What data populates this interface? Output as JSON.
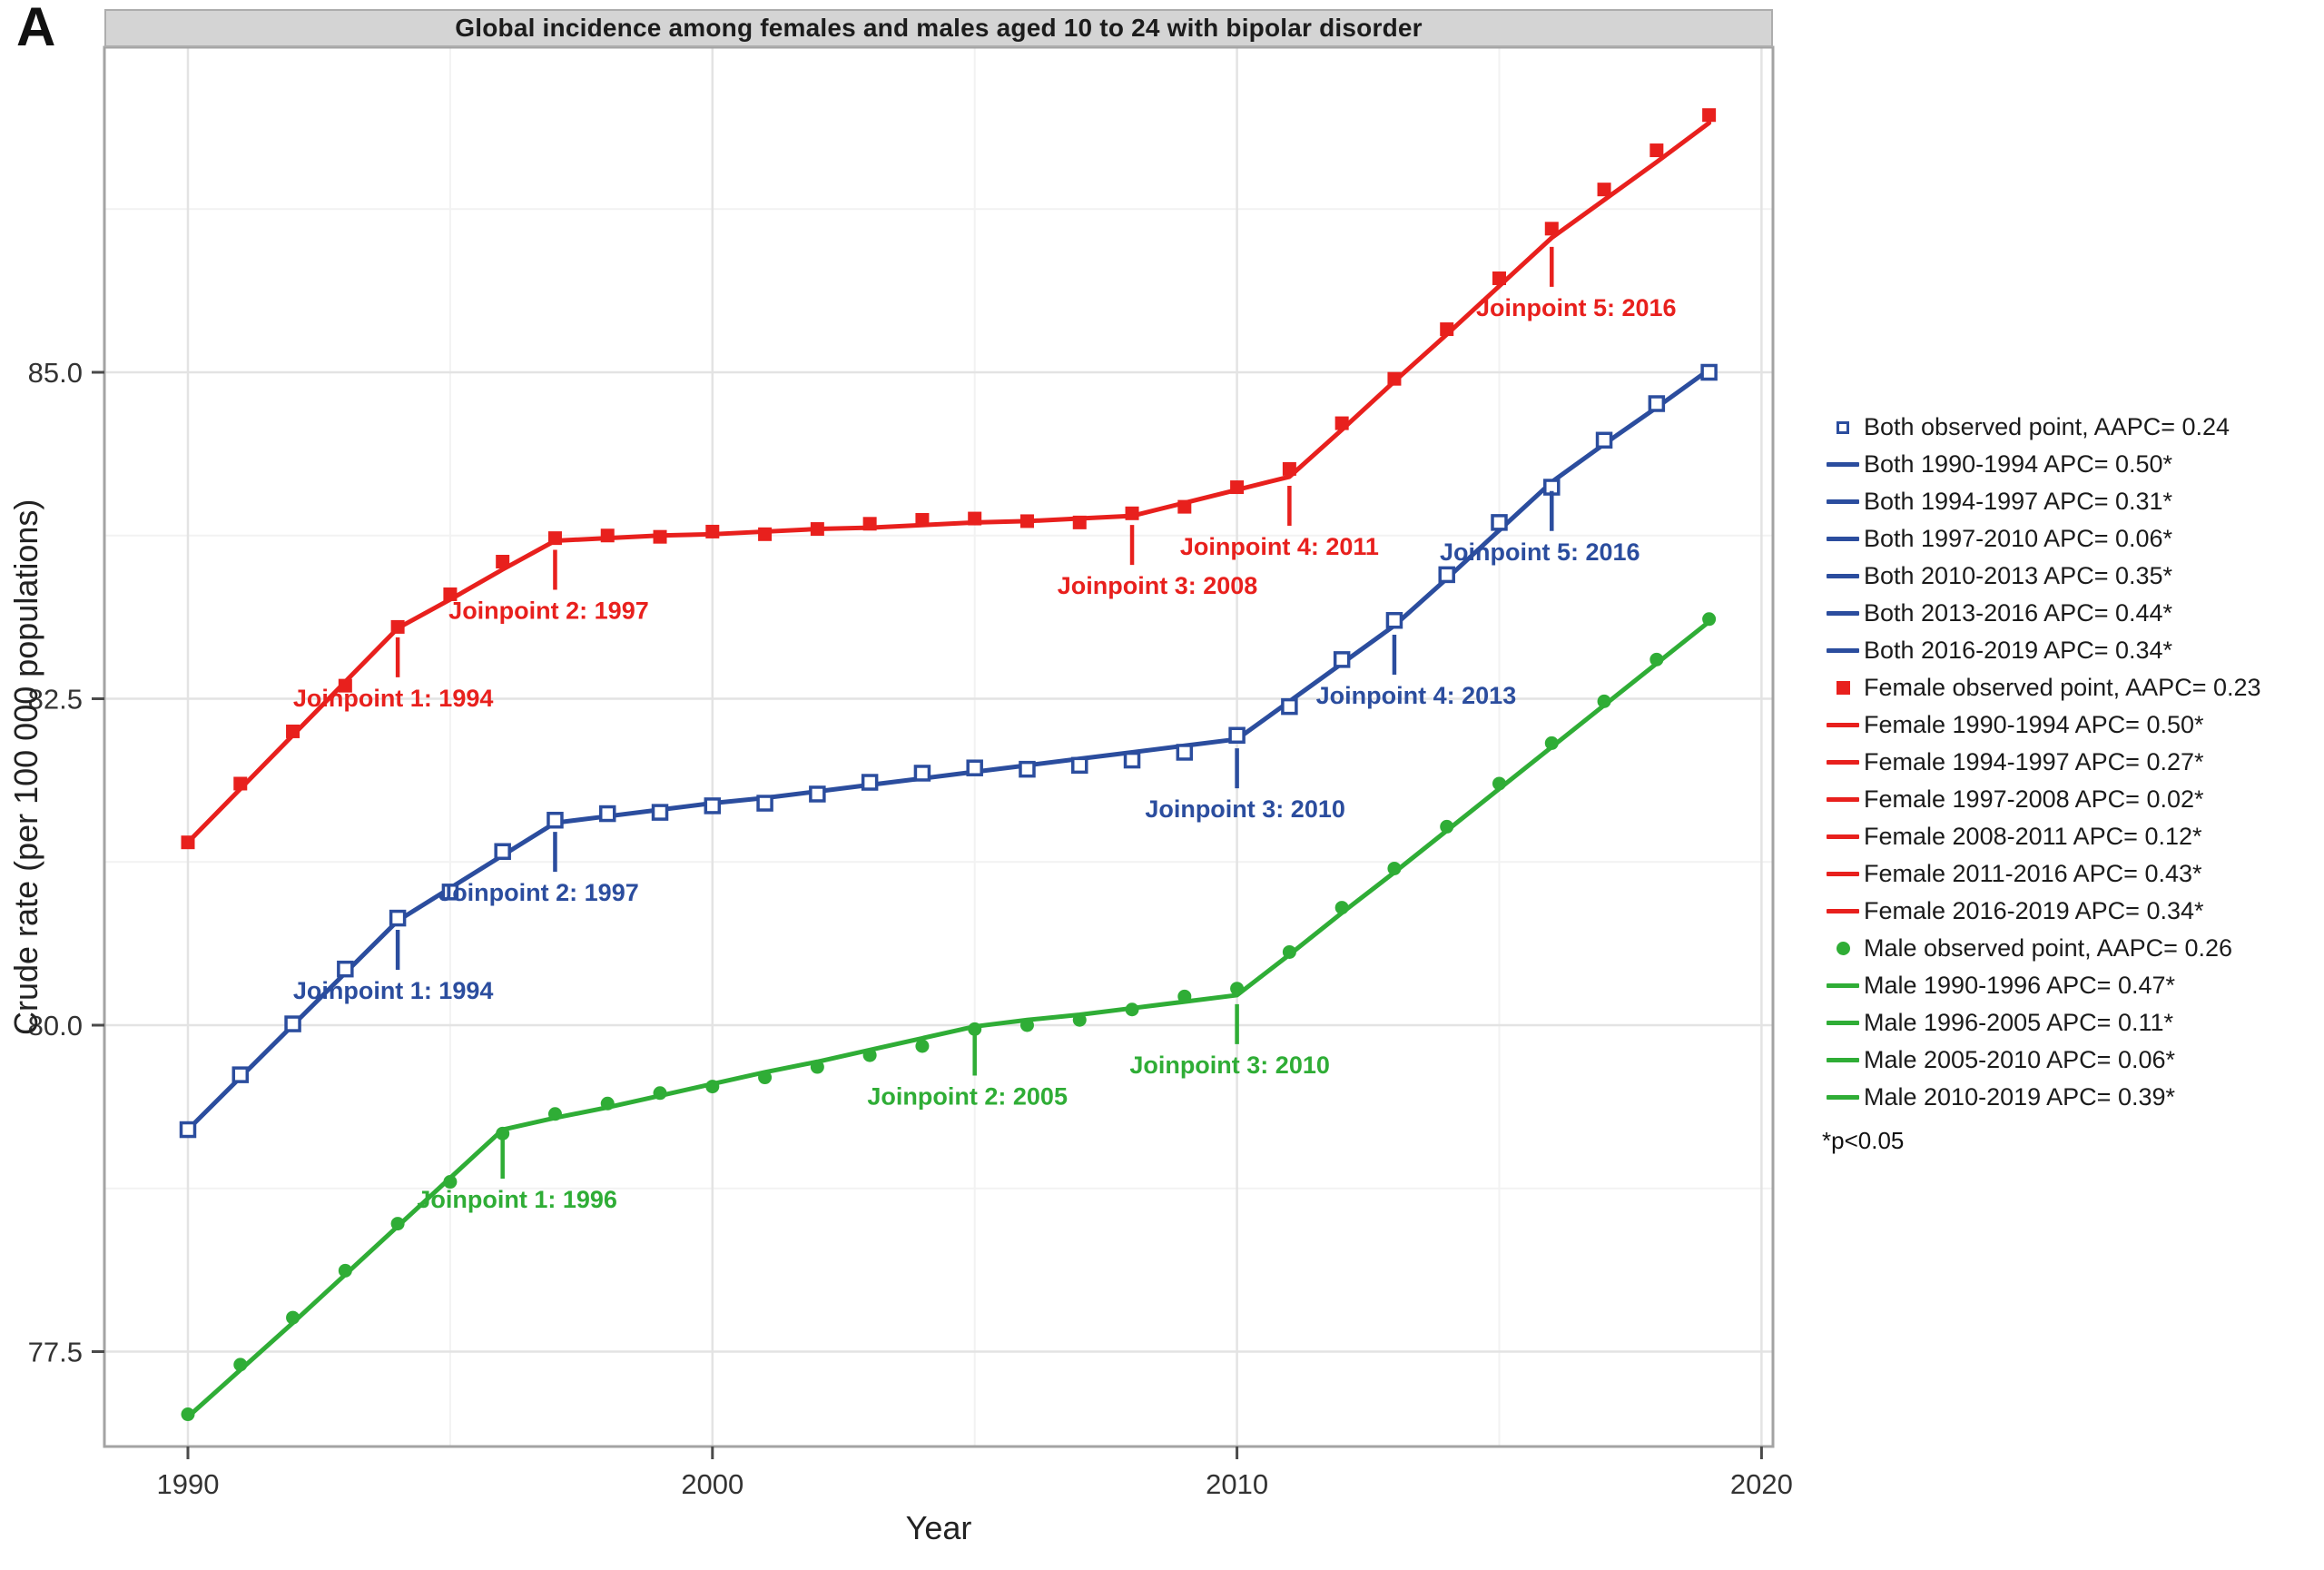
{
  "panel_label": "A",
  "title": "Global incidence among females and males aged 10 to 24 with bipolar disorder",
  "footnote": "*p<0.05",
  "colors": {
    "both": "#2b4d9e",
    "female": "#e8201d",
    "male": "#2fad36"
  },
  "axes": {
    "x_label": "Year",
    "y_label": "Crude rate (per 100 000 populations)",
    "x_tick_labels": [
      "1990",
      "2000",
      "2010",
      "2020"
    ],
    "y_tick_labels": [
      "77.5",
      "80.0",
      "82.5",
      "85.0"
    ]
  },
  "legend": [
    {
      "series": "both",
      "key": "square-open",
      "label": "Both  observed point, AAPC= 0.24"
    },
    {
      "series": "both",
      "key": "line",
      "label": "Both 1990-1994 APC= 0.50*"
    },
    {
      "series": "both",
      "key": "line",
      "label": "Both 1994-1997 APC= 0.31*"
    },
    {
      "series": "both",
      "key": "line",
      "label": "Both 1997-2010 APC= 0.06*"
    },
    {
      "series": "both",
      "key": "line",
      "label": "Both 2010-2013 APC= 0.35*"
    },
    {
      "series": "both",
      "key": "line",
      "label": "Both 2013-2016 APC= 0.44*"
    },
    {
      "series": "both",
      "key": "line",
      "label": "Both 2016-2019 APC= 0.34*"
    },
    {
      "series": "female",
      "key": "square-filled",
      "label": "Female  observed point, AAPC= 0.23"
    },
    {
      "series": "female",
      "key": "line",
      "label": "Female 1990-1994 APC= 0.50*"
    },
    {
      "series": "female",
      "key": "line",
      "label": "Female 1994-1997 APC= 0.27*"
    },
    {
      "series": "female",
      "key": "line",
      "label": "Female 1997-2008 APC= 0.02*"
    },
    {
      "series": "female",
      "key": "line",
      "label": "Female 2008-2011 APC= 0.12*"
    },
    {
      "series": "female",
      "key": "line",
      "label": "Female 2011-2016 APC= 0.43*"
    },
    {
      "series": "female",
      "key": "line",
      "label": "Female 2016-2019 APC= 0.34*"
    },
    {
      "series": "male",
      "key": "circle-filled",
      "label": "Male  observed point, AAPC= 0.26"
    },
    {
      "series": "male",
      "key": "line",
      "label": "Male 1990-1996 APC= 0.47*"
    },
    {
      "series": "male",
      "key": "line",
      "label": "Male 1996-2005 APC= 0.11*"
    },
    {
      "series": "male",
      "key": "line",
      "label": "Male 2005-2010 APC= 0.06*"
    },
    {
      "series": "male",
      "key": "line",
      "label": "Male 2010-2019 APC= 0.39*"
    }
  ],
  "chart_data": {
    "type": "line",
    "title": "Global incidence among females and males aged 10 to 24 with bipolar disorder",
    "xlabel": "Year",
    "ylabel": "Crude rate (per 100 000 populations)",
    "xlim": [
      1988.4,
      2020.2
    ],
    "ylim": [
      76.8,
      87.5
    ],
    "grid": true,
    "legend_position": "right",
    "x_major_gridlines": [
      1990,
      2000,
      2010,
      2020
    ],
    "x_minor_gridlines": [
      1995,
      2005,
      2015
    ],
    "y_major_gridlines": [
      77.5,
      80.0,
      82.5,
      85.0
    ],
    "y_minor_gridlines": [
      78.75,
      81.25,
      83.75,
      86.25
    ],
    "x": [
      1990,
      1991,
      1992,
      1993,
      1994,
      1995,
      1996,
      1997,
      1998,
      1999,
      2000,
      2001,
      2002,
      2003,
      2004,
      2005,
      2006,
      2007,
      2008,
      2009,
      2010,
      2011,
      2012,
      2013,
      2014,
      2015,
      2016,
      2017,
      2018,
      2019
    ],
    "series": [
      {
        "name": "Female",
        "color_key": "female",
        "marker": "square-filled",
        "aapc": 0.23,
        "fitted": [
          81.4,
          81.81,
          82.22,
          82.63,
          83.04,
          83.26,
          83.49,
          83.71,
          83.73,
          83.75,
          83.76,
          83.78,
          83.8,
          83.81,
          83.83,
          83.85,
          83.86,
          83.88,
          83.9,
          84.0,
          84.1,
          84.2,
          84.56,
          84.93,
          85.29,
          85.66,
          86.03,
          86.32,
          86.61,
          86.91
        ],
        "observed": [
          81.4,
          81.85,
          82.25,
          82.6,
          83.05,
          83.3,
          83.55,
          83.73,
          83.75,
          83.74,
          83.78,
          83.76,
          83.8,
          83.84,
          83.87,
          83.88,
          83.86,
          83.85,
          83.92,
          83.97,
          84.12,
          84.26,
          84.61,
          84.95,
          85.33,
          85.72,
          86.1,
          86.4,
          86.7,
          86.97
        ],
        "joinpoints": [
          {
            "label": "Joinpoint 1: 1994",
            "year": 1994,
            "dx": -5
          },
          {
            "label": "Joinpoint 2: 1997",
            "year": 1997,
            "dx": -7
          },
          {
            "label": "Joinpoint 3: 2008",
            "year": 2008,
            "dx": 28
          },
          {
            "label": "Joinpoint 4: 2011",
            "year": 2011,
            "dx": -11
          },
          {
            "label": "Joinpoint 5: 2016",
            "year": 2016,
            "dx": 27
          }
        ]
      },
      {
        "name": "Both",
        "color_key": "both",
        "marker": "square-open",
        "aapc": 0.24,
        "fitted": [
          79.2,
          79.6,
          80.0,
          80.4,
          80.8,
          81.05,
          81.3,
          81.55,
          81.6,
          81.65,
          81.7,
          81.74,
          81.79,
          81.84,
          81.89,
          81.94,
          81.99,
          82.04,
          82.09,
          82.14,
          82.19,
          82.48,
          82.77,
          83.06,
          83.42,
          83.79,
          84.16,
          84.45,
          84.73,
          85.02
        ],
        "observed": [
          79.2,
          79.62,
          80.01,
          80.43,
          80.82,
          81.02,
          81.33,
          81.57,
          81.62,
          81.63,
          81.68,
          81.7,
          81.77,
          81.86,
          81.93,
          81.97,
          81.96,
          81.99,
          82.03,
          82.09,
          82.22,
          82.44,
          82.8,
          83.1,
          83.45,
          83.85,
          84.12,
          84.48,
          84.76,
          85.0
        ],
        "joinpoints": [
          {
            "label": "Joinpoint 1: 1994",
            "year": 1994,
            "dx": -5
          },
          {
            "label": "Joinpoint 2: 1997",
            "year": 1997,
            "dx": -18
          },
          {
            "label": "Joinpoint 3: 2010",
            "year": 2010,
            "dx": 9
          },
          {
            "label": "Joinpoint 4: 2013",
            "year": 2013,
            "dx": 24
          },
          {
            "label": "Joinpoint 5: 2016",
            "year": 2016,
            "dx": -13
          }
        ]
      },
      {
        "name": "Male",
        "color_key": "male",
        "marker": "circle-filled",
        "aapc": 0.26,
        "fitted": [
          77.0,
          77.36,
          77.72,
          78.09,
          78.46,
          78.83,
          79.2,
          79.29,
          79.37,
          79.46,
          79.55,
          79.64,
          79.72,
          79.81,
          79.9,
          79.99,
          80.04,
          80.08,
          80.13,
          80.18,
          80.23,
          80.54,
          80.86,
          81.17,
          81.49,
          81.81,
          82.13,
          82.45,
          82.77,
          83.09
        ],
        "observed": [
          77.02,
          77.4,
          77.76,
          78.12,
          78.48,
          78.8,
          79.17,
          79.32,
          79.4,
          79.48,
          79.53,
          79.6,
          79.68,
          79.77,
          79.84,
          79.97,
          80.0,
          80.04,
          80.12,
          80.22,
          80.28,
          80.56,
          80.9,
          81.2,
          81.52,
          81.85,
          82.16,
          82.48,
          82.8,
          83.11
        ],
        "joinpoints": [
          {
            "label": "Joinpoint 1: 1996",
            "year": 1996,
            "dx": 16
          },
          {
            "label": "Joinpoint 2: 2005",
            "year": 2005,
            "dx": -8
          },
          {
            "label": "Joinpoint 3: 2010",
            "year": 2010,
            "dx": -8
          }
        ]
      }
    ]
  }
}
